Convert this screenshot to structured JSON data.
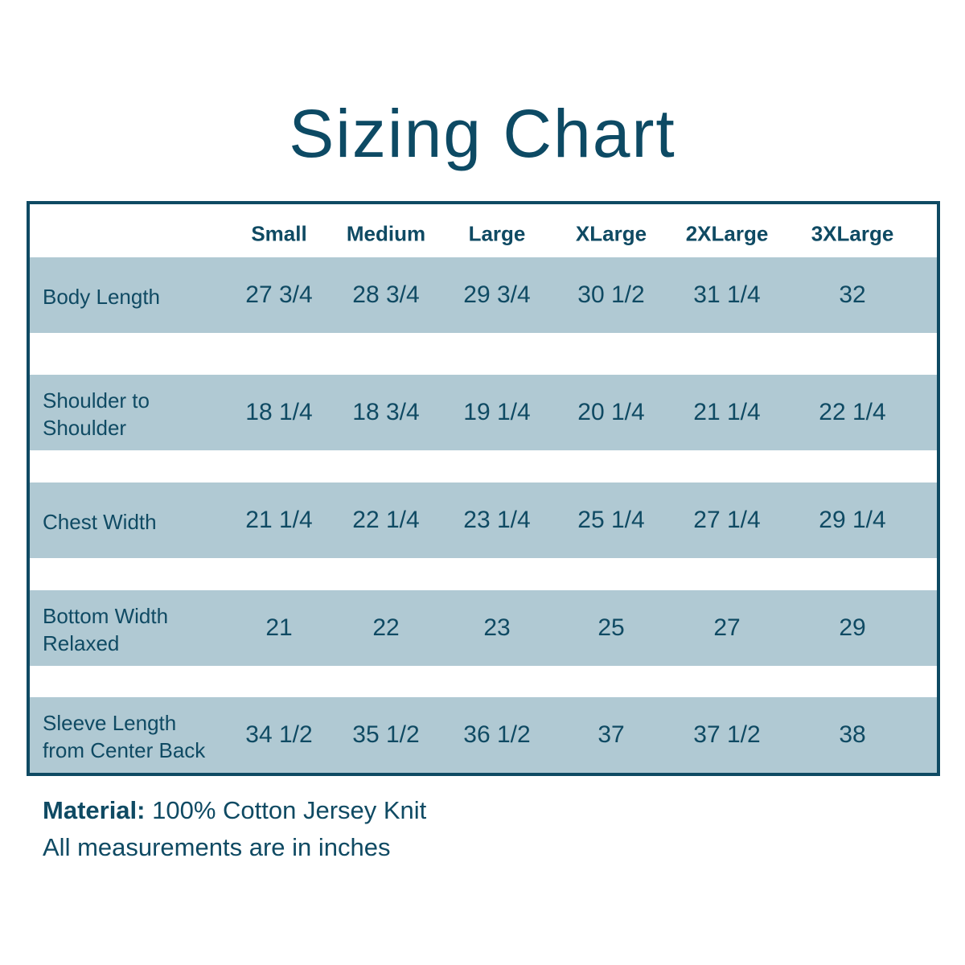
{
  "title": "Sizing Chart",
  "table": {
    "columns": [
      "Small",
      "Medium",
      "Large",
      "XLarge",
      "2XLarge",
      "3XLarge"
    ],
    "rows": [
      {
        "label": [
          "Body Length"
        ],
        "values": [
          "27 3/4",
          "28 3/4",
          "29 3/4",
          "30 1/2",
          "31 1/4",
          "32"
        ]
      },
      {
        "label": [
          "Shoulder to",
          "Shoulder"
        ],
        "values": [
          "18 1/4",
          "18 3/4",
          "19 1/4",
          "20 1/4",
          "21 1/4",
          "22 1/4"
        ]
      },
      {
        "label": [
          "Chest Width"
        ],
        "values": [
          "21 1/4",
          "22 1/4",
          "23 1/4",
          "25 1/4",
          "27 1/4",
          "29 1/4"
        ]
      },
      {
        "label": [
          "Bottom Width",
          "Relaxed"
        ],
        "values": [
          "21",
          "22",
          "23",
          "25",
          "27",
          "29"
        ]
      },
      {
        "label": [
          "Sleeve Length",
          "from Center Back"
        ],
        "values": [
          "34 1/2",
          "35 1/2",
          "36 1/2",
          "37",
          "37 1/2",
          "38"
        ]
      }
    ]
  },
  "footer": {
    "material_label": "Material:",
    "material": "100% Cotton Jersey Knit",
    "note": "All measurements are in inches"
  }
}
